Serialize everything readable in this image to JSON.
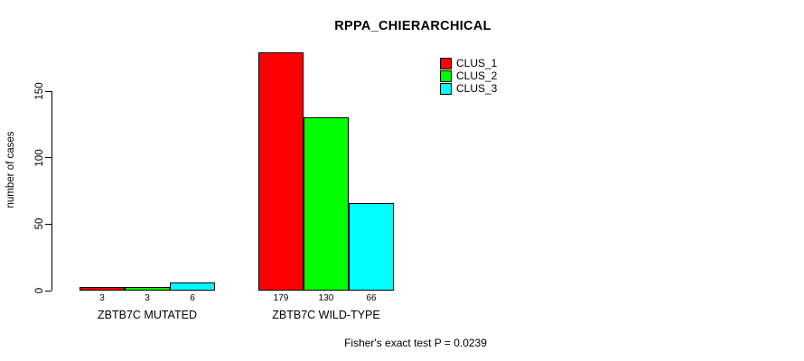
{
  "chart_data": {
    "type": "bar",
    "title": "RPPA_CHIERARCHICAL",
    "ylabel": "number of cases",
    "xlabel": "",
    "categories": [
      "ZBTB7C MUTATED",
      "ZBTB7C WILD-TYPE"
    ],
    "series": [
      {
        "name": "CLUS_1",
        "color": "#ff0000",
        "values": [
          3,
          179
        ]
      },
      {
        "name": "CLUS_2",
        "color": "#00ff00",
        "values": [
          3,
          130
        ]
      },
      {
        "name": "CLUS_3",
        "color": "#00ffff",
        "values": [
          6,
          66
        ]
      }
    ],
    "yticks": [
      0,
      50,
      100,
      150
    ],
    "ylim": [
      0,
      150
    ],
    "bar_value_labels": [
      [
        "3",
        "3",
        "6"
      ],
      [
        "179",
        "130",
        "66"
      ]
    ],
    "legend_position": "top-right",
    "grid": false
  },
  "footer": {
    "text": "Fisher's exact test P = 0.0239"
  },
  "colors": {
    "background": "#ffffff",
    "axis": "#000000",
    "bar_border": "#000000",
    "text": "#000000"
  }
}
